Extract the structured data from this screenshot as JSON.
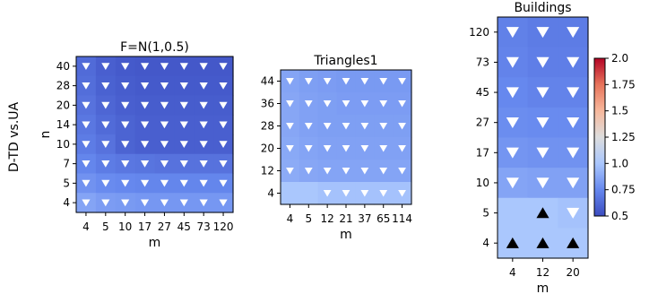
{
  "figure": {
    "row_label": "D-TD vs.UA"
  },
  "colorbar": {
    "vmin": 0.5,
    "vmax": 2.0,
    "ticks": [
      "0.5",
      "0.75",
      "1.0",
      "1.25",
      "1.5",
      "1.75",
      "2.0"
    ],
    "colormap": "coolwarm",
    "stops": [
      "#3b4cc0",
      "#6688ee",
      "#aac7fd",
      "#dddddd",
      "#f7b89c",
      "#e7745b",
      "#b40426"
    ]
  },
  "chart_data": [
    {
      "type": "heatmap",
      "title": "F=N(1,0.5)",
      "xlabel": "m",
      "ylabel": "n",
      "x_ticks": [
        "4",
        "5",
        "10",
        "17",
        "27",
        "45",
        "73",
        "120"
      ],
      "y_ticks": [
        "40",
        "28",
        "20",
        "14",
        "10",
        "7",
        "5",
        "4"
      ],
      "values": [
        [
          0.63,
          0.58,
          0.56,
          0.55,
          0.55,
          0.55,
          0.55,
          0.55
        ],
        [
          0.64,
          0.59,
          0.57,
          0.56,
          0.56,
          0.56,
          0.56,
          0.56
        ],
        [
          0.66,
          0.61,
          0.58,
          0.57,
          0.57,
          0.57,
          0.57,
          0.57
        ],
        [
          0.68,
          0.63,
          0.6,
          0.58,
          0.58,
          0.58,
          0.58,
          0.58
        ],
        [
          0.7,
          0.66,
          0.6,
          0.58,
          0.58,
          0.58,
          0.58,
          0.58
        ],
        [
          0.74,
          0.7,
          0.68,
          0.67,
          0.66,
          0.66,
          0.66,
          0.66
        ],
        [
          0.79,
          0.76,
          0.75,
          0.74,
          0.74,
          0.74,
          0.74,
          0.74
        ],
        [
          0.86,
          0.83,
          0.82,
          0.81,
          0.81,
          0.81,
          0.81,
          0.81
        ]
      ],
      "markers": [
        [
          "down",
          "down",
          "down",
          "down",
          "down",
          "down",
          "down",
          "down"
        ],
        [
          "down",
          "down",
          "down",
          "down",
          "down",
          "down",
          "down",
          "down"
        ],
        [
          "down",
          "down",
          "down",
          "down",
          "down",
          "down",
          "down",
          "down"
        ],
        [
          "down",
          "down",
          "down",
          "down",
          "down",
          "down",
          "down",
          "down"
        ],
        [
          "down",
          "down",
          "down",
          "down",
          "down",
          "down",
          "down",
          "down"
        ],
        [
          "down",
          "down",
          "down",
          "down",
          "down",
          "down",
          "down",
          "down"
        ],
        [
          "down",
          "down",
          "down",
          "down",
          "down",
          "down",
          "down",
          "down"
        ],
        [
          "down",
          "down",
          "down",
          "down",
          "down",
          "down",
          "down",
          "down"
        ]
      ]
    },
    {
      "type": "heatmap",
      "title": "Triangles1",
      "xlabel": "m",
      "ylabel": "",
      "x_ticks": [
        "4",
        "5",
        "12",
        "21",
        "37",
        "65",
        "114"
      ],
      "y_ticks": [
        "44",
        "36",
        "28",
        "20",
        "12",
        "4"
      ],
      "values": [
        [
          0.86,
          0.84,
          0.83,
          0.82,
          0.82,
          0.82,
          0.82
        ],
        [
          0.87,
          0.85,
          0.84,
          0.83,
          0.83,
          0.83,
          0.83
        ],
        [
          0.87,
          0.85,
          0.84,
          0.84,
          0.84,
          0.84,
          0.84
        ],
        [
          0.88,
          0.86,
          0.85,
          0.85,
          0.85,
          0.85,
          0.85
        ],
        [
          0.89,
          0.87,
          0.86,
          0.86,
          0.86,
          0.86,
          0.86
        ],
        [
          1.0,
          1.0,
          0.98,
          0.98,
          0.98,
          0.98,
          0.98
        ]
      ],
      "markers": [
        [
          "down",
          "down",
          "down",
          "down",
          "down",
          "down",
          "down"
        ],
        [
          "down",
          "down",
          "down",
          "down",
          "down",
          "down",
          "down"
        ],
        [
          "down",
          "down",
          "down",
          "down",
          "down",
          "down",
          "down"
        ],
        [
          "down",
          "down",
          "down",
          "down",
          "down",
          "down",
          "down"
        ],
        [
          "down",
          "down",
          "down",
          "down",
          "down",
          "down",
          "down"
        ],
        [
          "",
          "",
          "down",
          "down",
          "down",
          "down",
          "down"
        ]
      ]
    },
    {
      "type": "heatmap",
      "title": "Buildings",
      "xlabel": "m",
      "ylabel": "",
      "x_ticks": [
        "4",
        "12",
        "20"
      ],
      "y_ticks": [
        "120",
        "73",
        "45",
        "27",
        "17",
        "10",
        "5",
        "4"
      ],
      "values": [
        [
          0.72,
          0.7,
          0.7
        ],
        [
          0.73,
          0.71,
          0.71
        ],
        [
          0.75,
          0.73,
          0.73
        ],
        [
          0.77,
          0.76,
          0.76
        ],
        [
          0.8,
          0.79,
          0.79
        ],
        [
          0.86,
          0.85,
          0.85
        ],
        [
          1.0,
          1.0,
          0.98
        ],
        [
          1.0,
          1.0,
          1.0
        ]
      ],
      "markers": [
        [
          "down",
          "down",
          "down"
        ],
        [
          "down",
          "down",
          "down"
        ],
        [
          "down",
          "down",
          "down"
        ],
        [
          "down",
          "down",
          "down"
        ],
        [
          "down",
          "down",
          "down"
        ],
        [
          "down",
          "down",
          "down"
        ],
        [
          "",
          "up",
          "down"
        ],
        [
          "up",
          "up",
          "up"
        ]
      ]
    }
  ]
}
